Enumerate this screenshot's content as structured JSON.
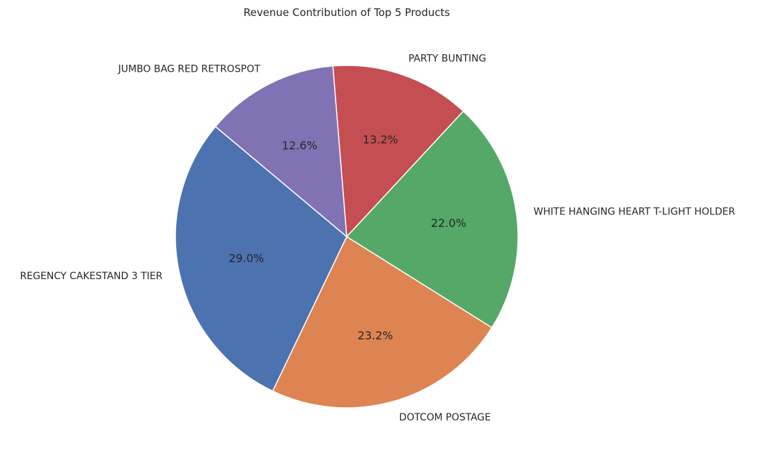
{
  "chart_data": {
    "type": "pie",
    "title": "Revenue Contribution of Top 5 Products",
    "categories": [
      "REGENCY CAKESTAND 3 TIER",
      "DOTCOM POSTAGE",
      "WHITE HANGING HEART T-LIGHT HOLDER",
      "PARTY BUNTING",
      "JUMBO BAG RED RETROSPOT"
    ],
    "values": [
      29.0,
      23.2,
      22.0,
      13.2,
      12.6
    ],
    "percent_labels": [
      "29.0%",
      "23.2%",
      "22.0%",
      "13.2%",
      "12.6%"
    ],
    "colors": [
      "#4c72b0",
      "#dd8452",
      "#55a868",
      "#c44e52",
      "#8172b3"
    ],
    "start_angle": 140,
    "direction": "counterclockwise",
    "legend": "none",
    "grid": false
  }
}
